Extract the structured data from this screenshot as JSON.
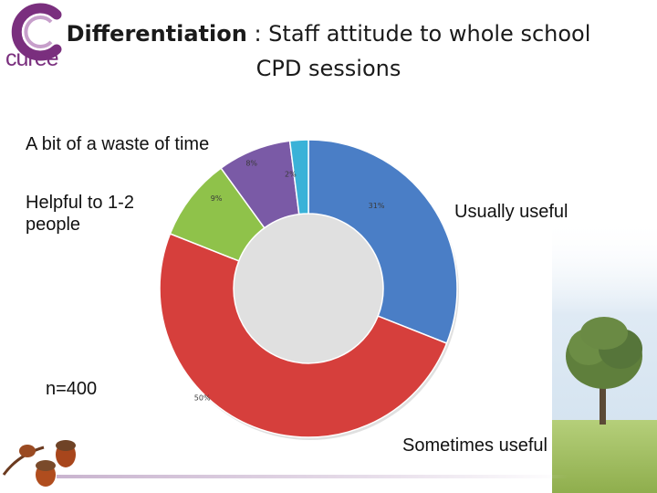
{
  "header": {
    "title_bold": "Differentiation",
    "title_rest": " : Staff attitude to whole school",
    "title_line2": "CPD sessions",
    "logo_text": "curee"
  },
  "colors": {
    "usually_useful": "#4a7ec6",
    "sometimes_useful": "#d63f3c",
    "helpful_1_2": "#8fc24a",
    "bit_of_waste": "#7a5aa6",
    "other": "#3ab2d8",
    "logo": "#7a2f7e"
  },
  "chart_data": {
    "type": "pie",
    "variant": "donut",
    "start": "top, clockwise",
    "slices": [
      {
        "label": "Usually useful",
        "value": 31,
        "value_label": "31%"
      },
      {
        "label": "Sometimes useful",
        "value": 50,
        "value_label": "50%"
      },
      {
        "label": "Helpful to 1-2 people",
        "value": 9,
        "value_label": "9%"
      },
      {
        "label": "A bit of a waste of time",
        "value": 8,
        "value_label": "8%"
      },
      {
        "label": "",
        "value": 2,
        "value_label": "2%"
      }
    ],
    "annotation": "n=400"
  }
}
